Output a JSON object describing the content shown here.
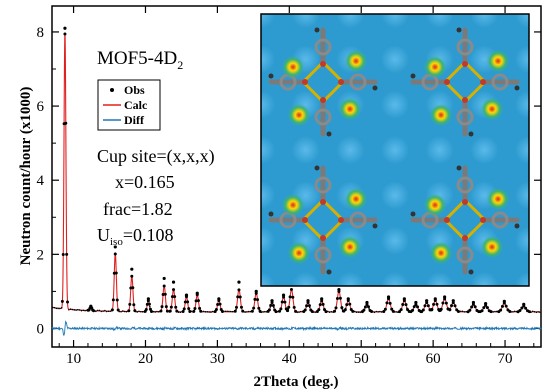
{
  "chart_data": {
    "type": "line",
    "xlabel": "2Theta (deg.)",
    "ylabel": "Neutron count/hour (x1000)",
    "xlim": [
      7,
      75
    ],
    "ylim": [
      -0.5,
      8.7
    ],
    "xticks": [
      10,
      20,
      30,
      40,
      50,
      60,
      70
    ],
    "yticks": [
      0,
      2,
      4,
      6,
      8
    ],
    "baseline": 0.45,
    "diff_offset": 0.0,
    "peaks": [
      {
        "x": 8.8,
        "y": 7.9
      },
      {
        "x": 12.4,
        "y": 0.55
      },
      {
        "x": 15.8,
        "y": 2.0
      },
      {
        "x": 18.1,
        "y": 1.4
      },
      {
        "x": 20.4,
        "y": 0.75
      },
      {
        "x": 22.6,
        "y": 1.15
      },
      {
        "x": 23.9,
        "y": 1.05
      },
      {
        "x": 25.7,
        "y": 0.85
      },
      {
        "x": 27.2,
        "y": 0.9
      },
      {
        "x": 30.2,
        "y": 0.75
      },
      {
        "x": 33.0,
        "y": 1.05
      },
      {
        "x": 35.4,
        "y": 0.95
      },
      {
        "x": 37.6,
        "y": 0.7
      },
      {
        "x": 39.2,
        "y": 0.85
      },
      {
        "x": 40.3,
        "y": 1.05
      },
      {
        "x": 42.6,
        "y": 0.7
      },
      {
        "x": 44.5,
        "y": 0.75
      },
      {
        "x": 46.9,
        "y": 1.0
      },
      {
        "x": 48.2,
        "y": 0.75
      },
      {
        "x": 50.8,
        "y": 0.65
      },
      {
        "x": 53.8,
        "y": 0.8
      },
      {
        "x": 56.0,
        "y": 0.75
      },
      {
        "x": 57.6,
        "y": 0.65
      },
      {
        "x": 59.1,
        "y": 0.7
      },
      {
        "x": 60.3,
        "y": 0.75
      },
      {
        "x": 61.6,
        "y": 0.8
      },
      {
        "x": 62.8,
        "y": 0.7
      },
      {
        "x": 65.6,
        "y": 0.65
      },
      {
        "x": 67.3,
        "y": 0.62
      },
      {
        "x": 69.9,
        "y": 0.68
      },
      {
        "x": 72.6,
        "y": 0.6
      }
    ],
    "legend": [
      {
        "label": "Obs",
        "color": "#000000",
        "marker": "dot"
      },
      {
        "label": "Calc",
        "color": "#e02020",
        "marker": "line"
      },
      {
        "label": "Diff",
        "color": "#1f77b4",
        "marker": "line"
      }
    ],
    "annotations": {
      "sample": "MOF5-4D",
      "sample_sub": "2",
      "site": "Cup site=(x,x,x)",
      "x_value": "x=0.165",
      "frac": "frac=1.82",
      "uiso_prefix": "U",
      "uiso_sub": "iso",
      "uiso_value": "=0.108"
    },
    "colors": {
      "obs": "#000000",
      "calc": "#e02020",
      "diff": "#1f77b4",
      "inset_bg": "#2e9bd0"
    }
  }
}
